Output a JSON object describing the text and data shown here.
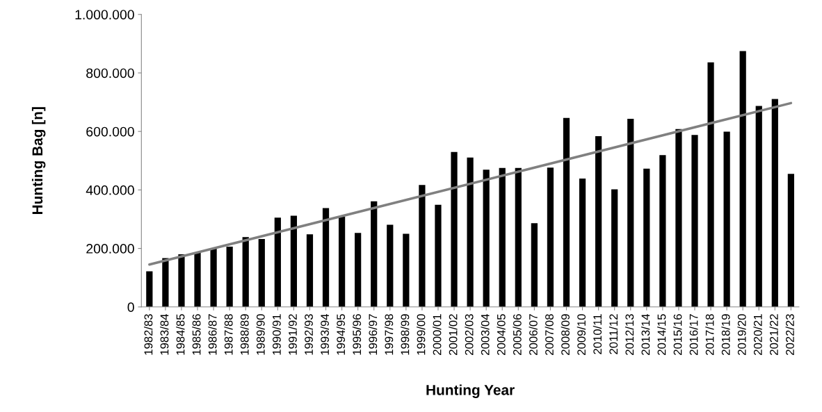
{
  "chart_data": {
    "type": "bar",
    "xlabel": "Hunting Year",
    "ylabel": "Hunting Bag [n]",
    "categories": [
      "1982/83",
      "1983/84",
      "1984/85",
      "1985/86",
      "1986/87",
      "1987/88",
      "1988/89",
      "1989/90",
      "1990/91",
      "1991/92",
      "1992/93",
      "1993/94",
      "1994/95",
      "1995/96",
      "1996/97",
      "1997/98",
      "1998/99",
      "1999/00",
      "2000/01",
      "2001/02",
      "2002/03",
      "2003/04",
      "2004/05",
      "2005/06",
      "2006/07",
      "2007/08",
      "2008/09",
      "2009/10",
      "2010/11",
      "2011/12",
      "2012/13",
      "2013/14",
      "2014/15",
      "2015/16",
      "2016/17",
      "2017/18",
      "2018/19",
      "2019/20",
      "2020/21",
      "2021/22",
      "2022/23"
    ],
    "series": [
      {
        "color": "#000000",
        "values": [
          122000,
          167000,
          180000,
          186000,
          200000,
          206000,
          239000,
          232000,
          305000,
          312000,
          248000,
          338000,
          308000,
          253000,
          361000,
          281000,
          250000,
          417000,
          349000,
          530000,
          511000,
          469000,
          475000,
          475000,
          286000,
          476000,
          646000,
          439000,
          584000,
          402000,
          643000,
          473000,
          519000,
          608000,
          588000,
          836000,
          599000,
          875000,
          687000,
          711000,
          455000
        ]
      },
      {
        "type": "line",
        "color": "#808080",
        "x": [
          "1982/83",
          "2022/23"
        ],
        "values": [
          145000,
          697000
        ]
      }
    ],
    "ylim": [
      0,
      1000000
    ],
    "yticks": [
      0,
      {
        "value": 200000,
        "label": "200.000"
      },
      {
        "value": 400000,
        "label": "400.000"
      },
      {
        "value": 600000,
        "label": "600.000"
      },
      {
        "value": 800000,
        "label": "800.000"
      },
      {
        "value": 1000000,
        "label": "1.000.000"
      }
    ],
    "grid": false,
    "legend": false
  }
}
